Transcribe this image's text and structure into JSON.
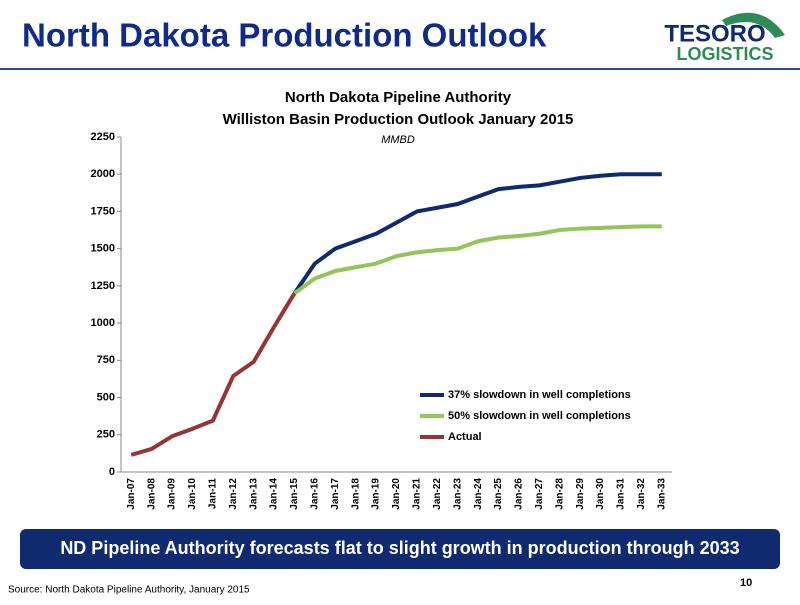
{
  "header": {
    "title": "North Dakota Production Outlook",
    "logo_top": "TESORO",
    "logo_bottom": "LOGISTICS"
  },
  "chart_data": {
    "type": "line",
    "title": [
      "North Dakota Pipeline Authority",
      "Williston Basin Production Outlook January 2015"
    ],
    "subtitle": "MMBD",
    "categories": [
      "Jan-07",
      "Jan-08",
      "Jan-09",
      "Jan-10",
      "Jan-11",
      "Jan-12",
      "Jan-13",
      "Jan-14",
      "Jan-15",
      "Jan-16",
      "Jan-17",
      "Jan-18",
      "Jan-19",
      "Jan-20",
      "Jan-21",
      "Jan-22",
      "Jan-23",
      "Jan-24",
      "Jan-25",
      "Jan-26",
      "Jan-27",
      "Jan-28",
      "Jan-29",
      "Jan-30",
      "Jan-31",
      "Jan-32",
      "Jan-33"
    ],
    "series": [
      {
        "name": "37% slowdown in well completions",
        "color": "#0f2a6e",
        "values": [
          null,
          null,
          null,
          null,
          null,
          null,
          null,
          null,
          1200,
          1400,
          1500,
          1550,
          1600,
          1675,
          1750,
          1775,
          1800,
          1850,
          1900,
          1915,
          1925,
          1950,
          1975,
          1990,
          2000,
          2000,
          2000
        ]
      },
      {
        "name": "50% slowdown in well completions",
        "color": "#92c65a",
        "values": [
          null,
          null,
          null,
          null,
          null,
          null,
          null,
          null,
          1200,
          1300,
          1350,
          1375,
          1400,
          1450,
          1475,
          1490,
          1500,
          1550,
          1575,
          1585,
          1600,
          1625,
          1635,
          1640,
          1645,
          1650,
          1650
        ]
      },
      {
        "name": "Actual",
        "color": "#963535",
        "values": [
          115,
          155,
          240,
          290,
          345,
          645,
          740,
          975,
          1200,
          null,
          null,
          null,
          null,
          null,
          null,
          null,
          null,
          null,
          null,
          null,
          null,
          null,
          null,
          null,
          null,
          null,
          null
        ]
      }
    ],
    "ylim": [
      0,
      2250
    ],
    "yticks": [
      0,
      250,
      500,
      750,
      1000,
      1250,
      1500,
      1750,
      2000,
      2250
    ],
    "grid": false,
    "legend": "lower right"
  },
  "banner": "ND Pipeline Authority forecasts flat to slight growth in production through 2033",
  "footer": {
    "source": "Source: North Dakota Pipeline Authority, January 2015",
    "page": "10"
  }
}
